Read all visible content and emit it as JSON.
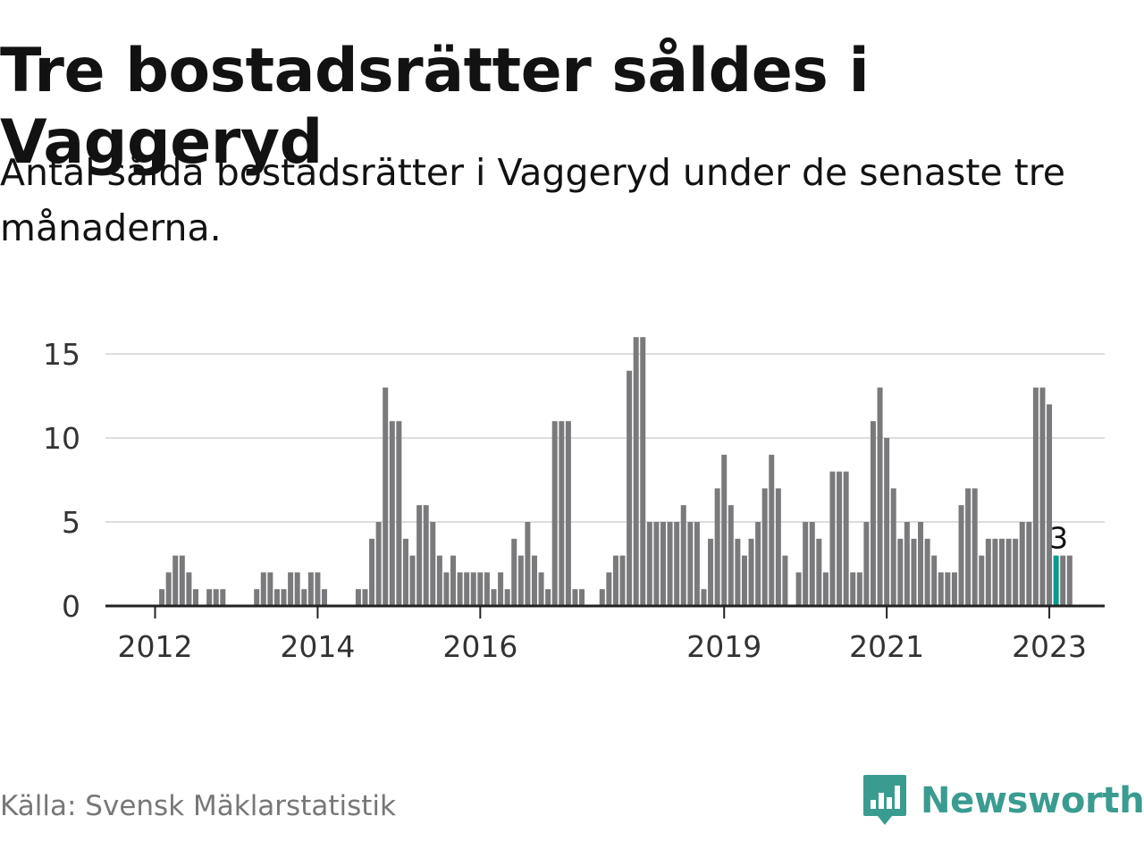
{
  "title": "Tre bostadsrätter såldes i Vaggeryd",
  "subtitle": "Antal sålda bostadsrätter i Vaggeryd under de senaste tre månaderna.",
  "source": "Källa: Svensk Mäklarstatistik",
  "brand": "Newsworthy",
  "colors": {
    "bar": "#7a7a7d",
    "highlight": "#0b9a8d",
    "brand": "#3a9c90",
    "grid": "#dddddd"
  },
  "chart_data": {
    "type": "bar",
    "title": "Tre bostadsrätter såldes i Vaggeryd",
    "xlabel": "",
    "ylabel": "",
    "ylim": [
      0,
      16
    ],
    "yticks": [
      0,
      5,
      10,
      15
    ],
    "xticks": [
      {
        "label": "2012",
        "index": 0
      },
      {
        "label": "2014",
        "index": 24
      },
      {
        "label": "2016",
        "index": 48
      },
      {
        "label": "2019",
        "index": 84
      },
      {
        "label": "2021",
        "index": 108
      },
      {
        "label": "2023",
        "index": 132
      }
    ],
    "start": "2012-01",
    "values": [
      0,
      1,
      2,
      3,
      3,
      2,
      1,
      0,
      1,
      1,
      1,
      0,
      0,
      0,
      0,
      1,
      2,
      2,
      1,
      1,
      2,
      2,
      1,
      2,
      2,
      1,
      0,
      0,
      0,
      0,
      1,
      1,
      4,
      5,
      13,
      11,
      11,
      4,
      3,
      6,
      6,
      5,
      3,
      2,
      3,
      2,
      2,
      2,
      2,
      2,
      1,
      2,
      1,
      4,
      3,
      5,
      3,
      2,
      1,
      11,
      11,
      11,
      1,
      1,
      0,
      0,
      1,
      2,
      3,
      3,
      14,
      16,
      16,
      5,
      5,
      5,
      5,
      5,
      6,
      5,
      5,
      1,
      4,
      7,
      9,
      6,
      4,
      3,
      4,
      5,
      7,
      9,
      7,
      3,
      0,
      2,
      5,
      5,
      4,
      2,
      8,
      8,
      8,
      2,
      2,
      5,
      11,
      13,
      10,
      7,
      4,
      5,
      4,
      5,
      4,
      3,
      2,
      2,
      2,
      6,
      7,
      7,
      3,
      4,
      4,
      4,
      4,
      4,
      5,
      5,
      13,
      13,
      12,
      3,
      3,
      3
    ],
    "highlight_index": 133,
    "annotation": "3"
  }
}
